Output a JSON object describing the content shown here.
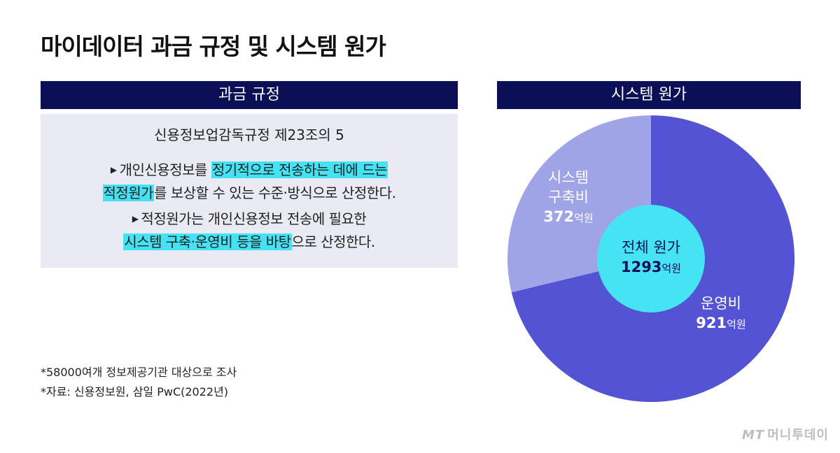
{
  "title": "마이데이터 과금 규정 및 시스템 원가",
  "left_panel": {
    "header": "과금 규정",
    "rule_title": "신용정보업감독규정 제23조의 5",
    "bullet": "▶",
    "p1_a": "개인신용정보를 ",
    "p1_hl1": "정기적으로 전송하는 데에 드는",
    "p1_hl2": "적정원가",
    "p1_b": "를 보상할 수 있는 수준·방식으로 산정한다.",
    "p2_a": "적정원가는 개인신용정보 전송에 필요한",
    "p2_hl": "시스템 구축·운영비 등을 바탕",
    "p2_b": "으로 산정한다."
  },
  "right_panel": {
    "header": "시스템 원가"
  },
  "chart_data": {
    "type": "pie",
    "total_label": "전체 원가",
    "total_value": 1293,
    "unit": "억원",
    "slices": [
      {
        "label_line1": "운영비",
        "label_line2": "",
        "value": 921,
        "color": "#5353d3"
      },
      {
        "label_line1": "시스템",
        "label_line2": "구축비",
        "value": 372,
        "color": "#9ea4e6"
      }
    ],
    "center_color": "#46e3f5"
  },
  "notes": [
    "*58000여개 정보제공기관 대상으로 조사",
    "*자료: 신용정보원, 삼일 PwC(2022년)"
  ],
  "brand": {
    "mt": "MT",
    "name": "머니투데이"
  }
}
